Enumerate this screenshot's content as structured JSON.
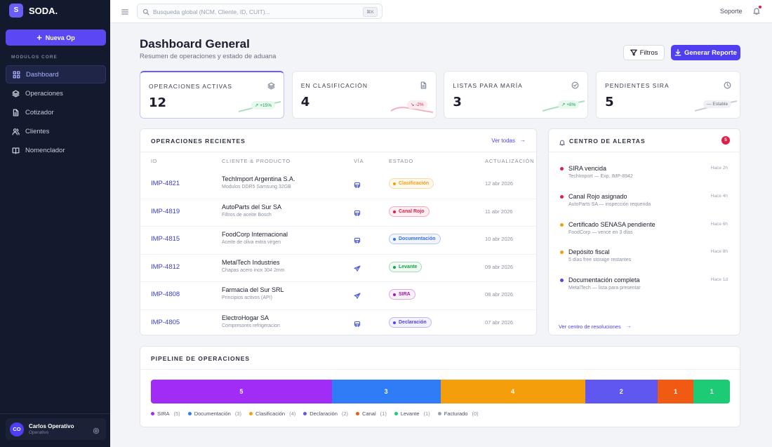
{
  "sidebar": {
    "logo_letter": "S",
    "brand": "SODA.",
    "new_button": "Nueva Op",
    "section": "MODULOS CORE",
    "nav": [
      {
        "label": "Dashboard",
        "icon": "grid",
        "active": true
      },
      {
        "label": "Operaciones",
        "icon": "layers",
        "active": false
      },
      {
        "label": "Cotizador",
        "icon": "doc",
        "active": false
      },
      {
        "label": "Clientes",
        "icon": "users",
        "active": false
      },
      {
        "label": "Nomenclador",
        "icon": "book",
        "active": false
      }
    ],
    "user": {
      "initials": "CO",
      "name": "Carlos Operativo",
      "role": "Operativo"
    }
  },
  "topbar": {
    "search_placeholder": "Busqueda global (NCM, Cliente, ID, CUIT)...",
    "shortcut": "⌘K",
    "support": "Soporte"
  },
  "header": {
    "title": "Dashboard General",
    "subtitle": "Resumen de operaciones y estado de aduana",
    "filter_button": "Filtros",
    "report_button": "Generar Reporte"
  },
  "kpis": [
    {
      "label": "OPERACIONES ACTIVAS",
      "value": 12,
      "trend": "+15%",
      "tone": "up",
      "icon": "layers"
    },
    {
      "label": "EN CLASIFICACIÓN",
      "value": 4,
      "trend": "-2%",
      "tone": "down",
      "icon": "doc"
    },
    {
      "label": "LISTAS PARA MARÍA",
      "value": 3,
      "trend": "+8%",
      "tone": "up",
      "icon": "check"
    },
    {
      "label": "PENDIENTES SIRA",
      "value": 5,
      "trend": "Estable",
      "tone": "flat",
      "icon": "clock"
    }
  ],
  "operations": {
    "title": "OPERACIONES RECIENTES",
    "link": "Ver todas",
    "columns": [
      "ID",
      "CLIENTE & PRODUCTO",
      "VÍA",
      "ESTADO",
      "ACTUALIZACIÓN"
    ],
    "rows": [
      {
        "id": "IMP-4821",
        "client": "TechImport Argentina S.A.",
        "product": "Modulos DDR5 Samsung 32GB",
        "via": "truck",
        "status": "Clasificación",
        "status_color": "#f59e0b",
        "date": "12 abr 2026"
      },
      {
        "id": "IMP-4819",
        "client": "AutoParts del Sur SA",
        "product": "Filtros de aceite Bosch",
        "via": "truck",
        "status": "Canal Rojo",
        "status_color": "#e11d48",
        "date": "11 abr 2026"
      },
      {
        "id": "IMP-4815",
        "client": "FoodCorp Internacional",
        "product": "Aceite de oliva extra virgen",
        "via": "truck",
        "status": "Documentación",
        "status_color": "#3b6fe0",
        "date": "10 abr 2026"
      },
      {
        "id": "IMP-4812",
        "client": "MetalTech Industries",
        "product": "Chapas acero inox 304 2mm",
        "via": "plane",
        "status": "Levante",
        "status_color": "#16a34a",
        "date": "09 abr 2026"
      },
      {
        "id": "IMP-4808",
        "client": "Farmacia del Sur SRL",
        "product": "Principios activos (API)",
        "via": "plane",
        "status": "SIRA",
        "status_color": "#a21caf",
        "date": "08 abr 2026"
      },
      {
        "id": "IMP-4805",
        "client": "ElectroHogar SA",
        "product": "Compresores refrigeracion",
        "via": "truck",
        "status": "Declaración",
        "status_color": "#4f46e5",
        "date": "07 abr 2026"
      }
    ]
  },
  "alerts": {
    "title": "CENTRO DE ALERTAS",
    "badge": "5",
    "link": "Ver centro de resoluciones",
    "items": [
      {
        "title": "SIRA vencida",
        "detail": "TechImport — Exp. IMP-8942",
        "time": "Hace 2h",
        "color": "#e11d48"
      },
      {
        "title": "Canal Rojo asignado",
        "detail": "AutoParts SA — inspección requerida",
        "time": "Hace 4h",
        "color": "#e11d48"
      },
      {
        "title": "Certificado SENASA pendiente",
        "detail": "FoodCorp — vence en 3 días",
        "time": "Hace 6h",
        "color": "#f59e0b"
      },
      {
        "title": "Depósito fiscal",
        "detail": "5 días free storage restantes",
        "time": "Hace 8h",
        "color": "#f59e0b"
      },
      {
        "title": "Documentación completa",
        "detail": "MetalTech — lista para presentar",
        "time": "Hace 1d",
        "color": "#4f46e5"
      }
    ]
  },
  "pipeline": {
    "title": "PIPELINE DE OPERACIONES",
    "stages": [
      {
        "name": "SIRA",
        "value": 5,
        "legend_label": "(5)",
        "color": "#a12cf5"
      },
      {
        "name": "Documentación",
        "value": 3,
        "legend_label": "(3)",
        "color": "#2f7cf6"
      },
      {
        "name": "Clasificación",
        "value": 4,
        "legend_label": "(4)",
        "color": "#f59e0b"
      },
      {
        "name": "Declaración",
        "value": 2,
        "legend_label": "(2)",
        "color": "#6056f0"
      },
      {
        "name": "Canal",
        "value": 1,
        "legend_label": "(1)",
        "color": "#f05a12"
      },
      {
        "name": "Levante",
        "value": 1,
        "legend_label": "(1)",
        "color": "#1ccb74"
      },
      {
        "name": "Facturado",
        "value": 0,
        "legend_label": "(0)",
        "color": "#9aa3b5"
      }
    ]
  }
}
